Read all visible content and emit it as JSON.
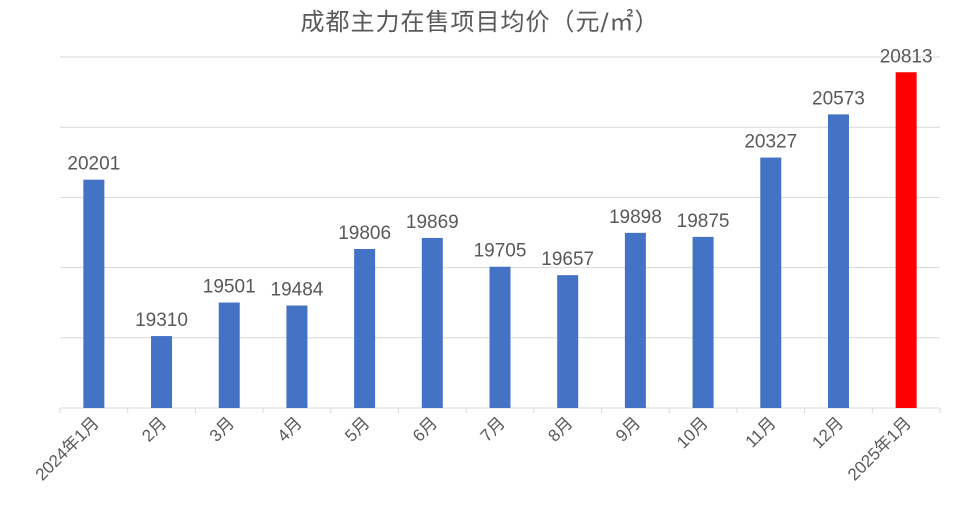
{
  "chart_data": {
    "type": "bar",
    "title": "成都主力在售项目均价（元/㎡）",
    "categories": [
      "2024年1月",
      "2月",
      "3月",
      "4月",
      "5月",
      "6月",
      "7月",
      "8月",
      "9月",
      "10月",
      "11月",
      "12月",
      "2025年1月"
    ],
    "values": [
      20201,
      19310,
      19501,
      19484,
      19806,
      19869,
      19705,
      19657,
      19898,
      19875,
      20327,
      20573,
      20813
    ],
    "highlight_index": 12,
    "colors": {
      "bar": "#4472C4",
      "highlight": "#FF0000",
      "grid": "#D9D9D9",
      "text": "#595959"
    },
    "ylim": [
      18900,
      20900
    ],
    "grid": true,
    "y_tick_labels_visible": false,
    "xlabel": "",
    "ylabel": ""
  }
}
